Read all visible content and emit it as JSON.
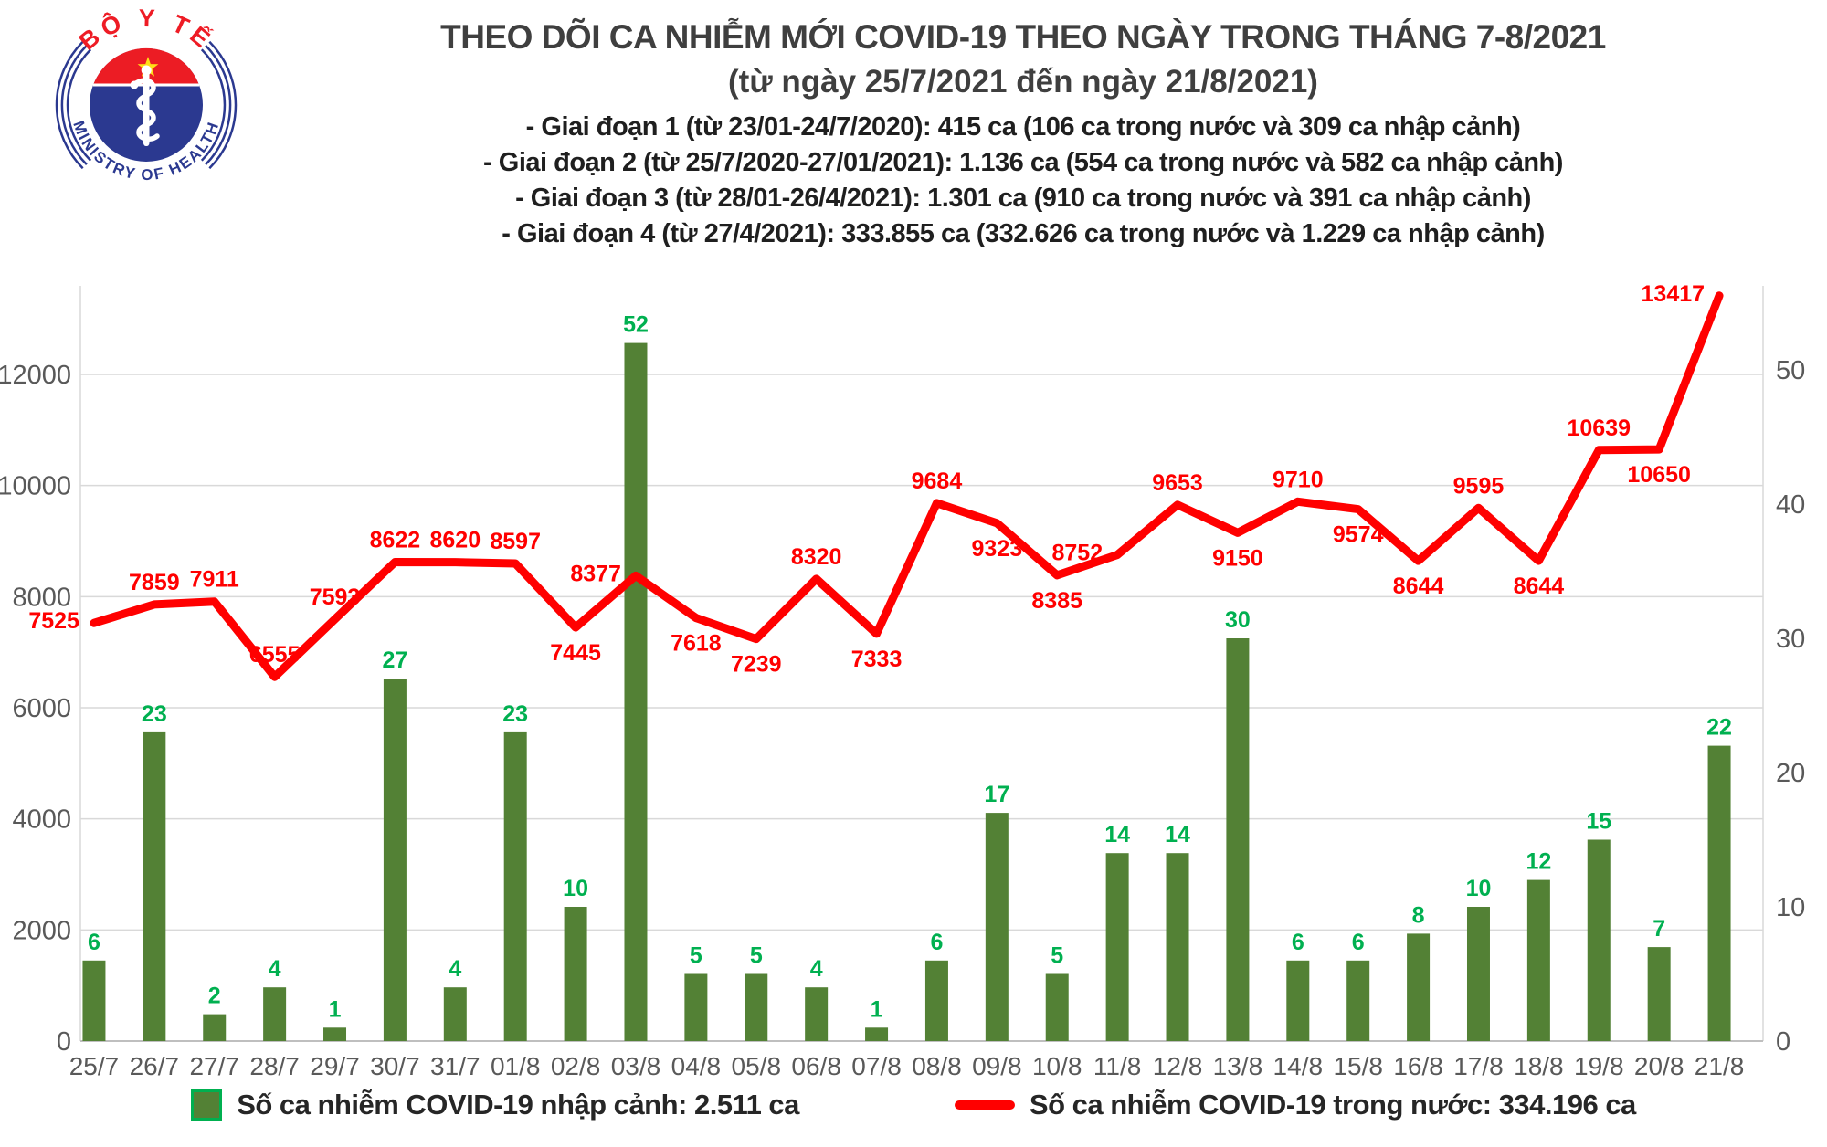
{
  "logo": {
    "top_text": "BỘ Y TẾ",
    "bottom_text": "MINISTRY OF HEALTH",
    "ring_color": "#2B3990",
    "cap_color": "#EC1C24",
    "star_color": "#FFDE17"
  },
  "title": {
    "main": "THEO DÕI CA NHIỄM MỚI COVID-19 THEO NGÀY TRONG THÁNG 7-8/2021",
    "sub": "(từ ngày 25/7/2021 đến ngày 21/8/2021)"
  },
  "notes": [
    "- Giai đoạn 1 (từ 23/01-24/7/2020): 415 ca (106 ca trong nước và 309 ca nhập cảnh)",
    "- Giai đoạn 2 (từ 25/7/2020-27/01/2021): 1.136 ca (554 ca trong nước và 582 ca nhập cảnh)",
    "- Giai đoạn 3 (từ 28/01-26/4/2021): 1.301 ca (910 ca trong nước và 391 ca nhập cảnh)",
    "- Giai đoạn 4 (từ 27/4/2021): 333.855 ca (332.626 ca trong nước và 1.229 ca nhập cảnh)"
  ],
  "chart_data": {
    "type": "bar+line",
    "categories": [
      "25/7",
      "26/7",
      "27/7",
      "28/7",
      "29/7",
      "30/7",
      "31/7",
      "01/8",
      "02/8",
      "03/8",
      "04/8",
      "05/8",
      "06/8",
      "07/8",
      "08/8",
      "09/8",
      "10/8",
      "11/8",
      "12/8",
      "13/8",
      "14/8",
      "15/8",
      "16/8",
      "17/8",
      "18/8",
      "19/8",
      "20/8",
      "21/8"
    ],
    "series": [
      {
        "name": "Số ca nhiễm COVID-19 nhập cảnh",
        "type": "bar",
        "axis": "right",
        "color": "#538135",
        "label_color": "#00B050",
        "values": [
          6,
          23,
          2,
          4,
          1,
          27,
          4,
          23,
          10,
          52,
          5,
          5,
          4,
          1,
          6,
          17,
          5,
          14,
          14,
          30,
          6,
          6,
          8,
          10,
          12,
          15,
          7,
          22
        ]
      },
      {
        "name": "Số ca nhiễm COVID-19 trong nước",
        "type": "line",
        "axis": "left",
        "color": "#FF0000",
        "label_color": "#FF0000",
        "values": [
          7525,
          7859,
          7911,
          6555,
          7593,
          8622,
          8620,
          8597,
          7445,
          8377,
          7618,
          7239,
          8320,
          7333,
          9684,
          9323,
          8385,
          8752,
          9653,
          9150,
          9710,
          9574,
          8644,
          9595,
          8644,
          10639,
          10650,
          13417
        ],
        "label_sides": [
          "left",
          "above",
          "above",
          "above",
          "above",
          "above",
          "above",
          "above",
          "below",
          "left",
          "below",
          "below",
          "above",
          "below",
          "above",
          "below",
          "below",
          "left",
          "above",
          "below",
          "above",
          "below",
          "below",
          "above",
          "below",
          "above",
          "below",
          "left"
        ]
      }
    ],
    "left_axis": {
      "ticks": [
        0,
        2000,
        4000,
        6000,
        8000,
        10000,
        12000
      ]
    },
    "right_axis": {
      "ticks": [
        0,
        10,
        20,
        30,
        40,
        50
      ]
    },
    "grid": "horizontal",
    "legend_position": "bottom",
    "axis_text_color": "#595959",
    "grid_color": "#D9D9D9"
  },
  "legend": {
    "items": [
      {
        "swatch": "bar-swatch",
        "label": "Số ca nhiễm COVID-19 nhập cảnh: 2.511 ca"
      },
      {
        "swatch": "line-swatch",
        "label": "Số ca nhiễm COVID-19 trong nước: 334.196 ca"
      }
    ]
  }
}
